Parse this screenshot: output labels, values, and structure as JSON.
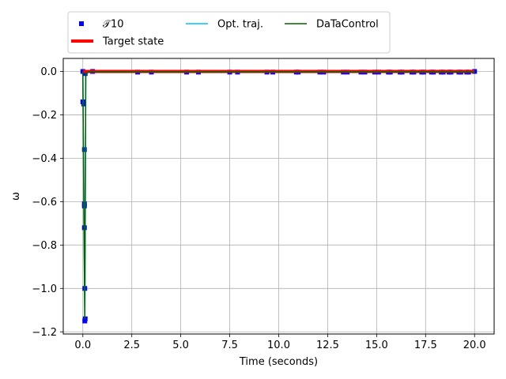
{
  "chart_data": {
    "type": "line",
    "xlabel": "Time (seconds)",
    "ylabel": "ω",
    "xlim": [
      -1.0,
      21.0
    ],
    "ylim": [
      -1.21,
      0.06
    ],
    "xticks": [
      0.0,
      2.5,
      5.0,
      7.5,
      10.0,
      12.5,
      15.0,
      17.5,
      20.0
    ],
    "xtick_labels": [
      "0.0",
      "2.5",
      "5.0",
      "7.5",
      "10.0",
      "12.5",
      "15.0",
      "17.5",
      "20.0"
    ],
    "yticks": [
      0.0,
      -0.2,
      -0.4,
      -0.6,
      -0.8,
      -1.0,
      -1.2
    ],
    "ytick_labels": [
      "0.0",
      "−0.2",
      "−0.4",
      "−0.6",
      "−0.8",
      "−1.0",
      "−1.2"
    ],
    "grid": true,
    "legend_position": "top",
    "series": [
      {
        "name": "𝒯10",
        "kind": "markers",
        "color": "#0000ff",
        "x": [
          0.0,
          0.0,
          0.05,
          0.08,
          0.08,
          0.08,
          0.08,
          0.1,
          0.12,
          0.1,
          0.12,
          0.5,
          2.8,
          3.5,
          5.3,
          5.9,
          7.5,
          7.9,
          9.4,
          9.7,
          10.9,
          11.0,
          12.1,
          12.3,
          13.3,
          13.5,
          14.2,
          14.4,
          14.9,
          15.1,
          15.6,
          15.7,
          16.2,
          16.3,
          16.8,
          16.9,
          17.3,
          17.4,
          17.8,
          17.9,
          18.3,
          18.4,
          18.7,
          18.8,
          19.2,
          19.3,
          19.6,
          19.7,
          20.0
        ],
        "y": [
          0.0,
          -0.14,
          -0.15,
          -0.36,
          -0.61,
          -0.62,
          -0.72,
          -1.0,
          -1.14,
          -1.15,
          -0.01,
          0.0,
          -0.003,
          -0.003,
          -0.003,
          -0.003,
          -0.003,
          -0.003,
          -0.003,
          -0.003,
          -0.003,
          -0.003,
          -0.003,
          -0.003,
          -0.003,
          -0.003,
          -0.003,
          -0.003,
          -0.003,
          -0.003,
          -0.003,
          -0.003,
          -0.003,
          -0.003,
          -0.003,
          -0.003,
          -0.003,
          -0.003,
          -0.003,
          -0.003,
          -0.003,
          -0.003,
          -0.003,
          -0.003,
          -0.003,
          -0.003,
          -0.003,
          -0.003,
          0.0
        ]
      },
      {
        "name": "Target state",
        "kind": "line",
        "color": "#ff0000",
        "x": [
          0.0,
          20.0
        ],
        "y": [
          0.0,
          0.0
        ]
      },
      {
        "name": "Opt. traj.",
        "kind": "line",
        "color": "#00bfff",
        "x": [
          0.0,
          0.05,
          0.1,
          0.15,
          0.3,
          20.0
        ],
        "y": [
          0.0,
          -0.6,
          -1.14,
          -0.01,
          -0.003,
          -0.003
        ]
      },
      {
        "name": "DaTaControl",
        "kind": "line",
        "color": "#006400",
        "x": [
          0.0,
          0.05,
          0.1,
          0.15,
          0.3,
          20.0
        ],
        "y": [
          0.0,
          -0.62,
          -1.14,
          -0.01,
          -0.003,
          -0.003
        ]
      }
    ]
  }
}
